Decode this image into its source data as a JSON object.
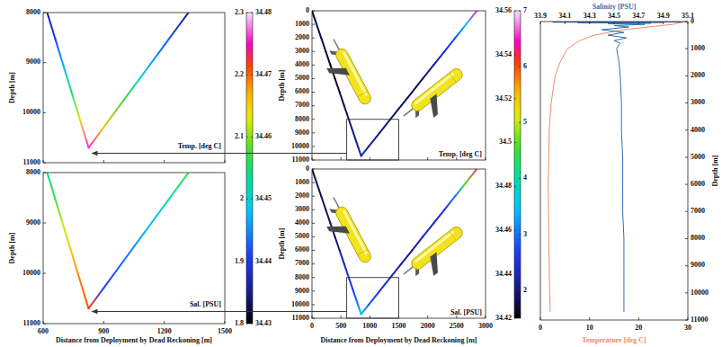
{
  "chart_data": [
    {
      "type": "line",
      "ylabel": "Depth [m]",
      "xlim": [
        600,
        1500
      ],
      "xticks": [
        600,
        900,
        1200,
        1500
      ],
      "ylim": [
        11000,
        8000
      ],
      "yticks": [
        8000,
        9000,
        10000,
        11000
      ],
      "tick_labels": "y",
      "x": [
        620,
        660,
        700,
        740,
        780,
        825,
        900,
        1000,
        1100,
        1200,
        1320
      ],
      "values": [
        8000,
        8527,
        9054,
        9580,
        10107,
        10700,
        10291,
        9745,
        9200,
        8654,
        8000
      ],
      "color_values": [
        1.86,
        1.91,
        1.97,
        2.04,
        2.14,
        2.26,
        2.16,
        2.07,
        2.0,
        1.93,
        1.85
      ],
      "colorbar": {
        "label": "Temp. [deg C]",
        "range": [
          1.8,
          2.3
        ],
        "ticks": [
          1.8,
          1.9,
          2,
          2.1,
          2.2,
          2.3
        ]
      }
    },
    {
      "type": "line",
      "xlabel": "Distance from Deployment by Dead Reckoning [m]",
      "ylabel": "Depth [m]",
      "xlim": [
        600,
        1500
      ],
      "xticks": [
        600,
        900,
        1200,
        1500
      ],
      "ylim": [
        11000,
        8000
      ],
      "yticks": [
        8000,
        9000,
        10000,
        11000
      ],
      "x": [
        620,
        660,
        700,
        740,
        780,
        825,
        900,
        1000,
        1100,
        1200,
        1320
      ],
      "values": [
        8000,
        8527,
        9054,
        9580,
        10107,
        10700,
        10291,
        9745,
        9200,
        8654,
        8000
      ],
      "color_values": [
        34.453,
        34.457,
        34.462,
        34.466,
        34.469,
        34.471,
        34.441,
        34.443,
        34.447,
        34.452,
        34.457
      ],
      "colorbar": {
        "label": "Sal. [PSU]",
        "range": [
          34.43,
          34.48
        ],
        "ticks": [
          34.43,
          34.44,
          34.45,
          34.46,
          34.47,
          34.48
        ]
      }
    },
    {
      "type": "line",
      "ylabel": "Depth [m]",
      "xlim": [
        0,
        3000
      ],
      "xticks": [
        0,
        500,
        1000,
        1500,
        2000,
        2500,
        3000
      ],
      "ylim": [
        11000,
        0
      ],
      "yticks": [
        0,
        1000,
        2000,
        3000,
        4000,
        5000,
        6000,
        7000,
        8000,
        9000,
        10000,
        11000
      ],
      "tick_labels": "y",
      "x": [
        0,
        79,
        159,
        238,
        318,
        397,
        477,
        556,
        636,
        715,
        794,
        850,
        981,
        1168,
        1355,
        1542,
        1729,
        1915,
        2102,
        2289,
        2476,
        2663,
        2850
      ],
      "values": [
        0,
        1000,
        2000,
        3000,
        4000,
        5000,
        6000,
        7000,
        8000,
        9000,
        10000,
        10700,
        10000,
        9000,
        8000,
        7000,
        6000,
        5000,
        4000,
        3000,
        2000,
        1000,
        0
      ],
      "color_values": [
        1.6,
        1.8,
        1.8,
        1.7,
        1.6,
        1.6,
        1.7,
        1.8,
        1.9,
        2.0,
        2.15,
        2.25,
        2.15,
        2.0,
        1.9,
        1.8,
        1.8,
        1.9,
        2.1,
        2.4,
        2.8,
        3.6,
        6.5
      ],
      "colorbar": {
        "label": "Temp. [deg C]",
        "range": [
          1.5,
          7
        ],
        "ticks": [
          2,
          3,
          4,
          5,
          6,
          7
        ]
      }
    },
    {
      "type": "line",
      "xlabel": "Distance from Deployment by Dead Reckoning [m]",
      "ylabel": "Depth [m]",
      "xlim": [
        0,
        3000
      ],
      "xticks": [
        0,
        500,
        1000,
        1500,
        2000,
        2500,
        3000
      ],
      "ylim": [
        11000,
        0
      ],
      "yticks": [
        0,
        1000,
        2000,
        3000,
        4000,
        5000,
        6000,
        7000,
        8000,
        9000,
        10000,
        11000
      ],
      "x": [
        0,
        79,
        159,
        238,
        318,
        397,
        477,
        556,
        636,
        715,
        794,
        850,
        981,
        1168,
        1355,
        1542,
        1729,
        1915,
        2102,
        2289,
        2476,
        2663,
        2850
      ],
      "values": [
        0,
        1000,
        2000,
        3000,
        4000,
        5000,
        6000,
        7000,
        8000,
        9000,
        10000,
        10700,
        10000,
        9000,
        8000,
        7000,
        6000,
        5000,
        4000,
        3000,
        2000,
        1000,
        0
      ],
      "color_values": [
        34.425,
        34.43,
        34.43,
        34.43,
        34.43,
        34.43,
        34.435,
        34.44,
        34.445,
        34.45,
        34.46,
        34.47,
        34.455,
        34.445,
        34.44,
        34.435,
        34.435,
        34.44,
        34.44,
        34.445,
        34.46,
        34.5,
        34.54
      ],
      "colorbar": {
        "label": "Sal. [PSU]",
        "range": [
          34.42,
          34.56
        ],
        "ticks": [
          34.42,
          34.44,
          34.46,
          34.48,
          34.5,
          34.52,
          34.54,
          34.56
        ]
      }
    },
    {
      "type": "line",
      "xlabel": "Temperature [deg C]",
      "x2label": "Salinity [PSU]",
      "ylabel": "Depth [m]",
      "xlim": [
        0,
        30
      ],
      "xticks": [
        0,
        10,
        20,
        30
      ],
      "x2lim": [
        33.9,
        35.1
      ],
      "x2ticks": [
        33.9,
        34.1,
        34.3,
        34.5,
        34.7,
        34.9,
        35.1
      ],
      "ylim": [
        11000,
        0
      ],
      "yticks": [
        0,
        1000,
        2000,
        3000,
        4000,
        5000,
        6000,
        7000,
        8000,
        9000,
        10000,
        11000
      ],
      "series": [
        {
          "color": "#f08a6c",
          "x": [
            29.5,
            27,
            22,
            17,
            11,
            8,
            5.5,
            4,
            3,
            2.2,
            1.8,
            1.6,
            1.7,
            1.9,
            2.0
          ],
          "values": [
            0,
            100,
            200,
            300,
            500,
            700,
            1000,
            1500,
            2000,
            3000,
            4000,
            6000,
            8000,
            10000,
            10700
          ]
        },
        {
          "color": "#2f6fb3",
          "axis": "x2",
          "x": [
            34.3,
            35.05,
            34.0,
            34.9,
            34.2,
            34.8,
            34.45,
            34.75,
            34.5,
            34.62,
            34.4,
            34.58,
            34.45,
            34.6,
            34.5,
            34.55,
            34.52,
            34.54,
            34.55,
            34.56,
            34.56,
            34.57,
            34.57,
            34.57,
            34.58,
            34.58,
            34.58,
            34.58
          ],
          "values": [
            0,
            10,
            20,
            30,
            40,
            60,
            80,
            100,
            150,
            200,
            300,
            400,
            500,
            600,
            700,
            800,
            1000,
            1500,
            2000,
            3000,
            4000,
            5000,
            6000,
            7000,
            8000,
            9000,
            10000,
            10700
          ]
        }
      ]
    }
  ]
}
